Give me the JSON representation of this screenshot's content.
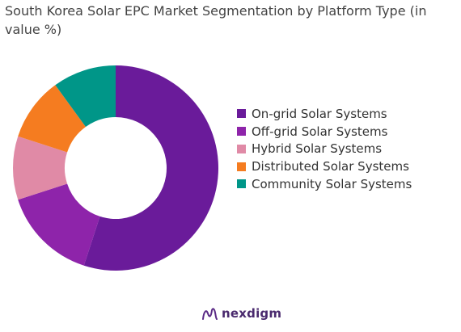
{
  "chart_data": {
    "type": "pie",
    "title": "South Korea Solar EPC Market Segmentation by Platform Type (in value %)",
    "legend_position": "right",
    "donut": true,
    "slices": [
      {
        "label": "On-grid Solar Systems",
        "value": 55,
        "color": "#6a1b9a"
      },
      {
        "label": "Off-grid Solar Systems",
        "value": 15,
        "color": "#8e24aa"
      },
      {
        "label": "Hybrid Solar Systems",
        "value": 10,
        "color": "#e08aa6"
      },
      {
        "label": "Distributed Solar Systems",
        "value": 10,
        "color": "#f57c20"
      },
      {
        "label": "Community Solar Systems",
        "value": 10,
        "color": "#009688"
      }
    ]
  },
  "branding": {
    "name": "nexdigm",
    "icon": "nexdigm-logo-icon"
  }
}
